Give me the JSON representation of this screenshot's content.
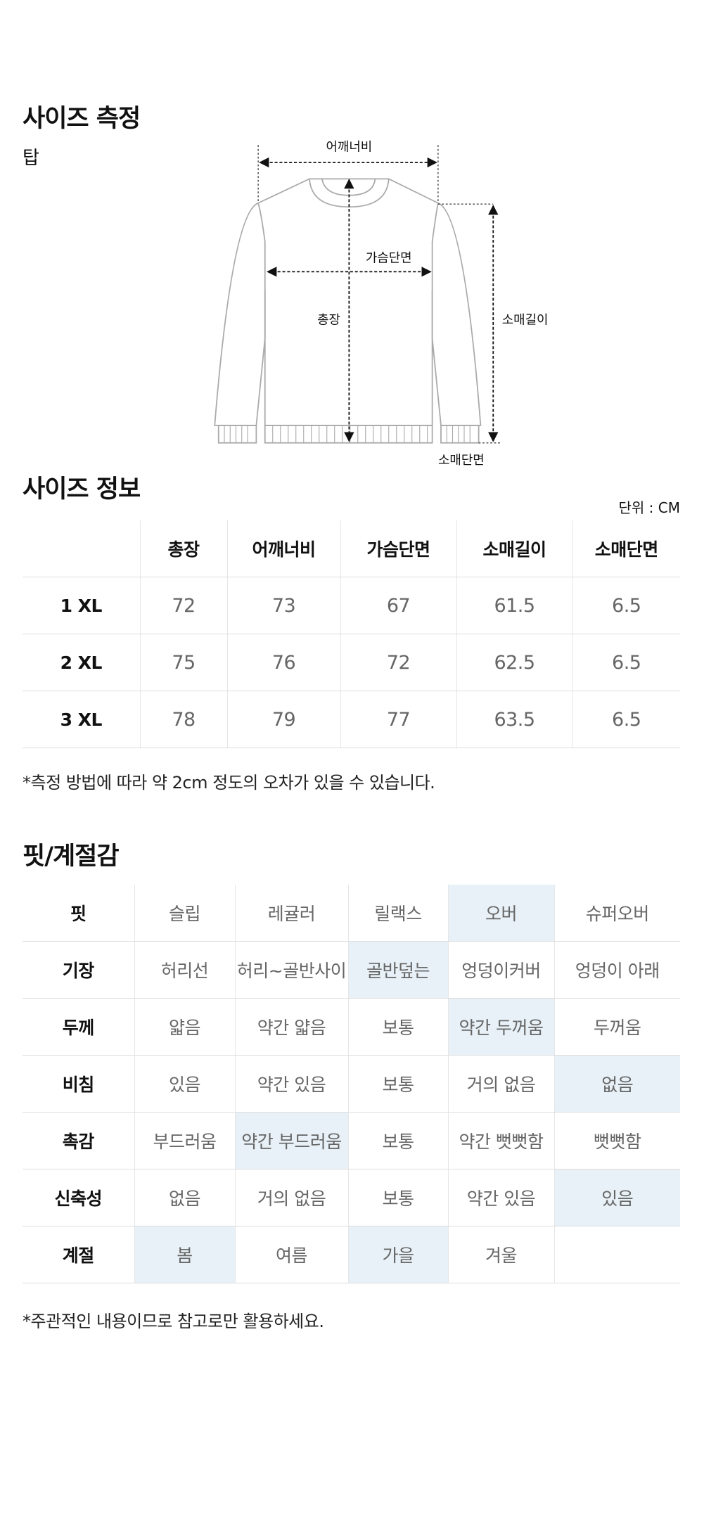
{
  "measure": {
    "title": "사이즈 측정",
    "item": "탑",
    "labels": {
      "shoulder": "어깨너비",
      "chest": "가슴단면",
      "length": "총장",
      "sleeve": "소매길이",
      "cuff": "소매단면"
    }
  },
  "size_info": {
    "title": "사이즈 정보",
    "unit": "단위 : CM",
    "headers": [
      "총장",
      "어깨너비",
      "가슴단면",
      "소매길이",
      "소매단면"
    ],
    "rows": [
      {
        "size": "1 XL",
        "values": [
          72,
          73,
          67,
          61.5,
          6.5
        ]
      },
      {
        "size": "2 XL",
        "values": [
          75,
          76,
          72,
          62.5,
          6.5
        ]
      },
      {
        "size": "3 XL",
        "values": [
          78,
          79,
          77,
          63.5,
          6.5
        ]
      }
    ],
    "note": "*측정 방법에 따라 약 2cm 정도의 오차가 있을 수 있습니다."
  },
  "fit": {
    "title": "핏/계절감",
    "rows": [
      {
        "label": "핏",
        "options": [
          "슬립",
          "레귤러",
          "릴랙스",
          "오버",
          "슈퍼오버"
        ],
        "selected": [
          3
        ]
      },
      {
        "label": "기장",
        "options": [
          "허리선",
          "허리~골반사이",
          "골반덮는",
          "엉덩이커버",
          "엉덩이 아래"
        ],
        "selected": [
          2
        ]
      },
      {
        "label": "두께",
        "options": [
          "얇음",
          "약간 얇음",
          "보통",
          "약간 두꺼움",
          "두꺼움"
        ],
        "selected": [
          3
        ]
      },
      {
        "label": "비침",
        "options": [
          "있음",
          "약간 있음",
          "보통",
          "거의 없음",
          "없음"
        ],
        "selected": [
          4
        ]
      },
      {
        "label": "촉감",
        "options": [
          "부드러움",
          "약간 부드러움",
          "보통",
          "약간 뻣뻣함",
          "뻣뻣함"
        ],
        "selected": [
          1
        ]
      },
      {
        "label": "신축성",
        "options": [
          "없음",
          "거의 없음",
          "보통",
          "약간 있음",
          "있음"
        ],
        "selected": [
          4
        ]
      },
      {
        "label": "계절",
        "options": [
          "봄",
          "여름",
          "가을",
          "겨울"
        ],
        "selected": [
          0,
          2
        ]
      }
    ],
    "note": "*주관적인 내용이므로 참고로만 활용하세요."
  }
}
